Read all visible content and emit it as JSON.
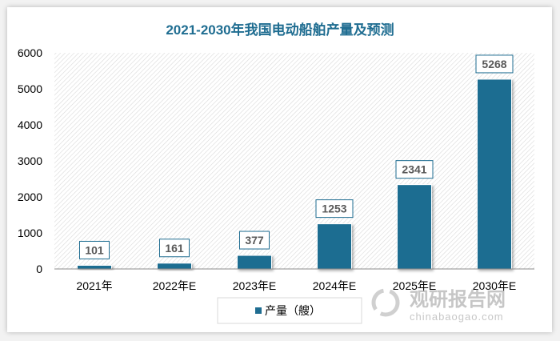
{
  "chart_data": {
    "type": "bar",
    "title": "2021-2030年我国电动船舶产量及预测",
    "categories": [
      "2021年",
      "2022年E",
      "2023年E",
      "2024年E",
      "2025年E",
      "2030年E"
    ],
    "series": [
      {
        "name": "产量（艘）",
        "values": [
          101,
          161,
          377,
          1253,
          2341,
          5268
        ]
      }
    ],
    "ylim": [
      0,
      6000
    ],
    "yticks": [
      0,
      1000,
      2000,
      3000,
      4000,
      5000,
      6000
    ],
    "data_labels": true,
    "legend": "bottom",
    "bar_color": "#1f6d91",
    "title_color": "#1f6d91",
    "plot_background": "hatched"
  },
  "watermark": {
    "brand": "观研报告网",
    "url": "chinabaogao.com"
  }
}
